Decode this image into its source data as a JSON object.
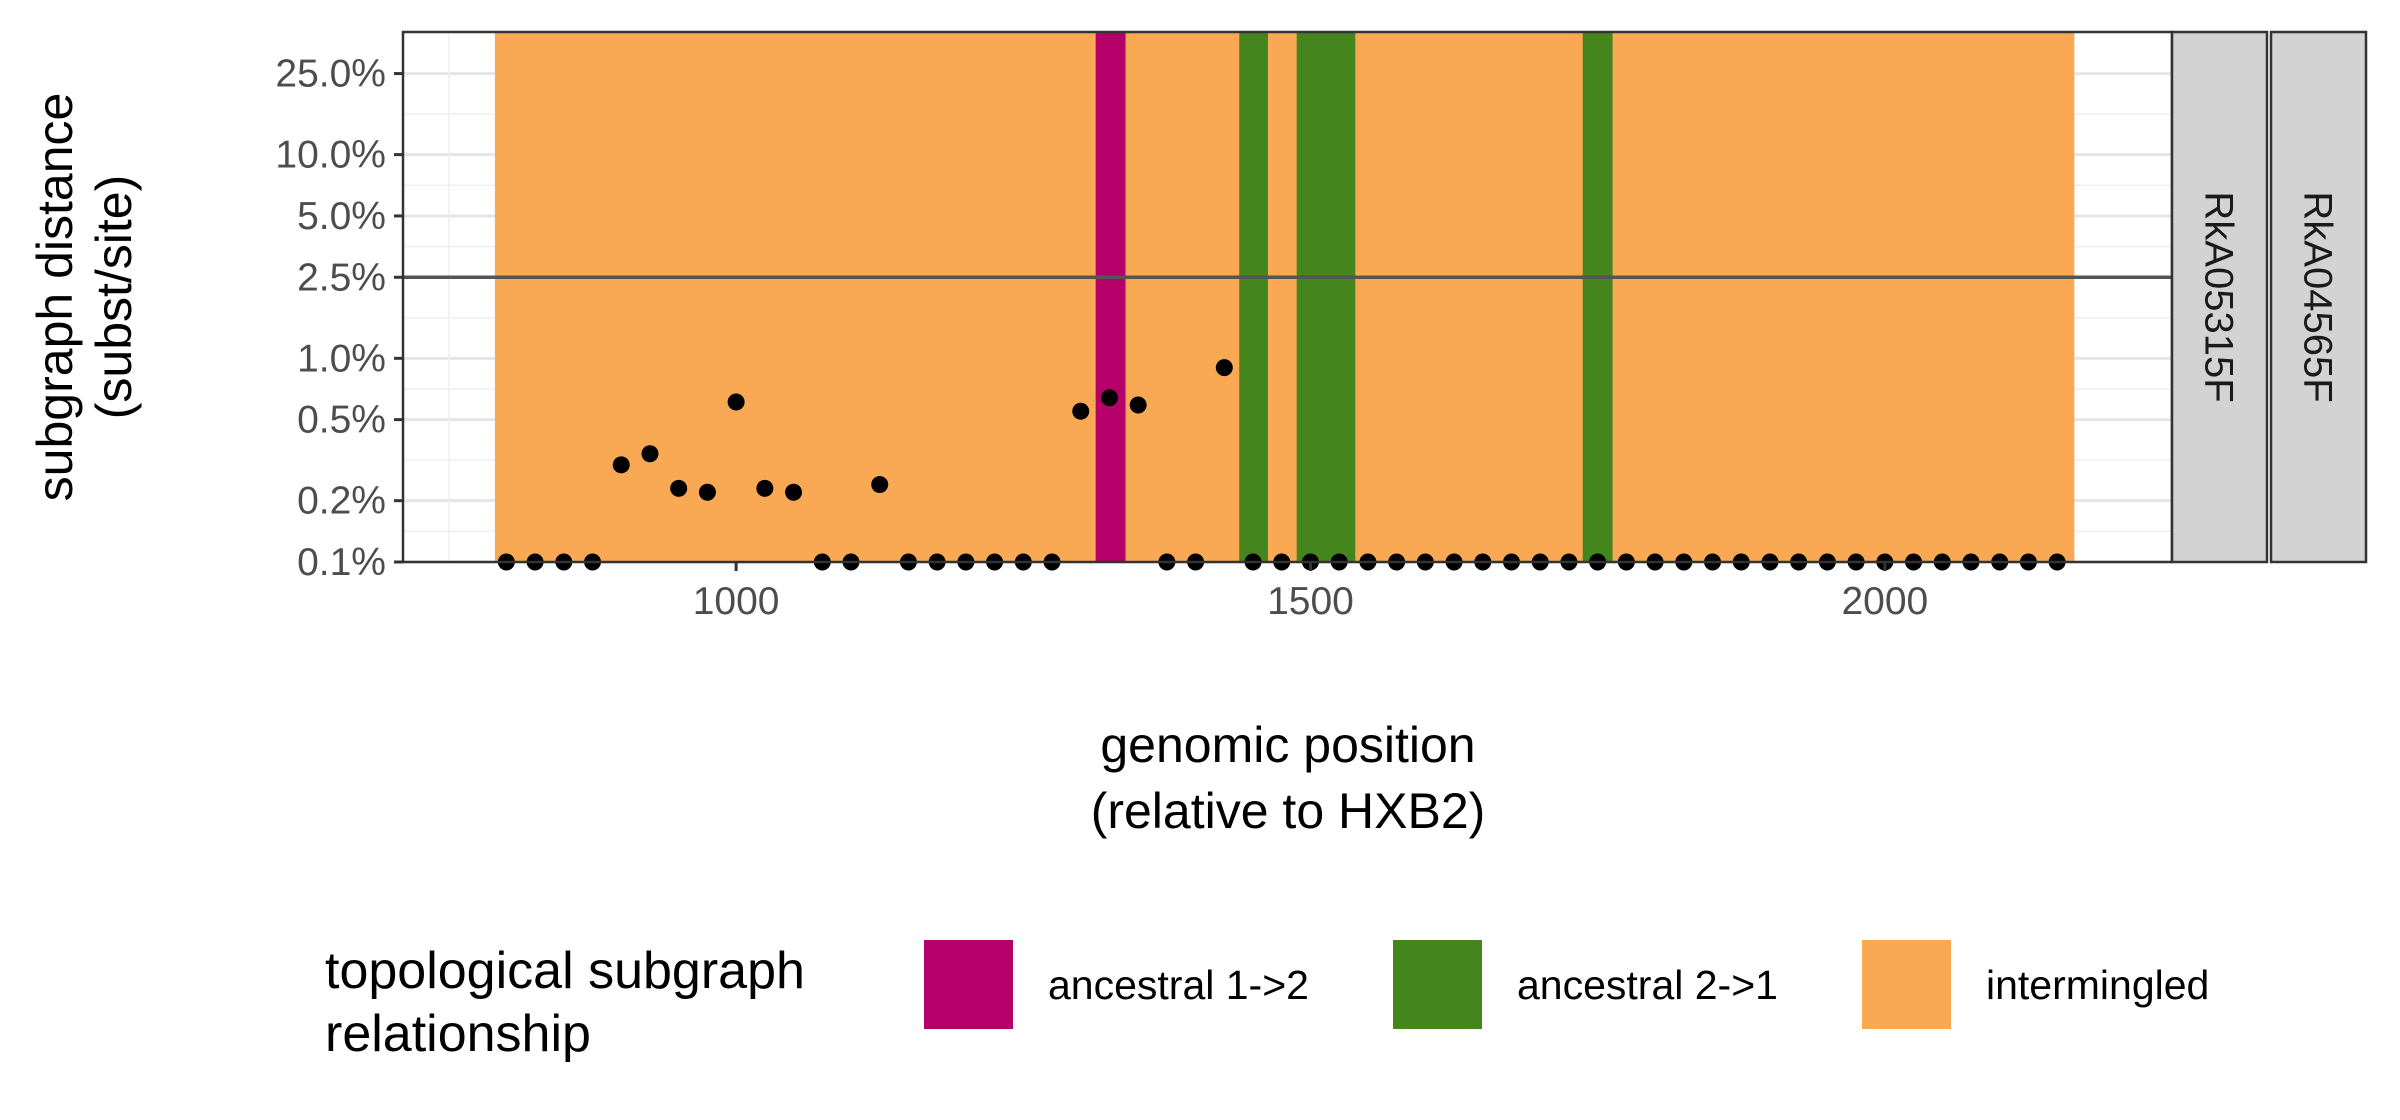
{
  "chart_data": {
    "type": "scatter",
    "xlabel": [
      "genomic position",
      "(relative to HXB2)"
    ],
    "ylabel": [
      "subgraph distance",
      "(subst/site)"
    ],
    "xlim": [
      710,
      2250
    ],
    "x_ticks": [
      1000,
      1500,
      2000
    ],
    "x_tick_labels": [
      "1000",
      "1500",
      "2000"
    ],
    "y_scale": "log",
    "ylim": [
      0.1,
      40.0
    ],
    "y_ticks": [
      0.1,
      0.2,
      0.5,
      1.0,
      2.5,
      5.0,
      10.0,
      25.0
    ],
    "y_tick_labels": [
      "0.1%",
      "0.2%",
      "0.5%",
      "1.0%",
      "2.5%",
      "5.0%",
      "10.0%",
      "25.0%"
    ],
    "y_unit": "percent",
    "reference_line_y": 2.5,
    "grid": true,
    "background_regions": [
      {
        "category": "intermingled",
        "x_start": 790,
        "x_end": 2165
      },
      {
        "category": "ancestral 1->2",
        "x_start": 1313,
        "x_end": 1339
      },
      {
        "category": "ancestral 2->1",
        "x_start": 1438,
        "x_end": 1463
      },
      {
        "category": "ancestral 2->1",
        "x_start": 1488,
        "x_end": 1539
      },
      {
        "category": "ancestral 2->1",
        "x_start": 1737,
        "x_end": 1763
      }
    ],
    "points": {
      "x": [
        800,
        825,
        850,
        875,
        900,
        925,
        950,
        975,
        1000,
        1025,
        1050,
        1075,
        1100,
        1125,
        1150,
        1175,
        1200,
        1225,
        1250,
        1275,
        1300,
        1325,
        1350,
        1375,
        1400,
        1425,
        1450,
        1475,
        1500,
        1525,
        1550,
        1575,
        1600,
        1625,
        1650,
        1675,
        1700,
        1725,
        1750,
        1775,
        1800,
        1825,
        1850,
        1875,
        1900,
        1925,
        2000,
        1950,
        1975,
        2025,
        2050,
        2075,
        2100,
        2125,
        2150
      ],
      "y": [
        0.1,
        0.1,
        0.1,
        0.1,
        0.3,
        0.34,
        0.23,
        0.22,
        0.61,
        0.23,
        0.22,
        0.1,
        0.1,
        0.24,
        0.1,
        0.1,
        0.1,
        0.1,
        0.1,
        0.1,
        0.55,
        0.64,
        0.59,
        0.1,
        0.1,
        0.9,
        0.1,
        0.1,
        0.1,
        0.1,
        0.1,
        0.1,
        0.1,
        0.1,
        0.1,
        0.1,
        0.1,
        0.1,
        0.1,
        0.1,
        0.1,
        0.1,
        0.1,
        0.1,
        0.1,
        0.1,
        0.1,
        0.1,
        0.1,
        0.1,
        0.1,
        0.1,
        0.1,
        0.1,
        0.1
      ]
    },
    "facet_strips": [
      "RkA05315F",
      "RkA04565F"
    ],
    "legend": {
      "title": [
        "topological subgraph",
        "relationship"
      ],
      "position": "bottom",
      "entries": [
        {
          "label": "ancestral 1->2",
          "color": "#b5006a"
        },
        {
          "label": "ancestral 2->1",
          "color": "#44851e"
        },
        {
          "label": "intermingled",
          "color": "#f9a954"
        }
      ]
    },
    "colors": {
      "ancestral 1->2": "#b5006a",
      "ancestral 2->1": "#44851e",
      "intermingled": "#f9a954",
      "points": "#000000",
      "strip": "#d3d3d3",
      "reference_line": "#555555"
    }
  }
}
